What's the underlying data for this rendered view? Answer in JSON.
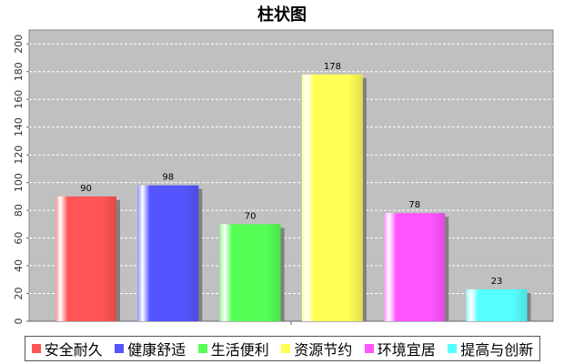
{
  "chart_data": {
    "type": "bar",
    "title": "柱状图",
    "categories": [
      "安全耐久",
      "健康舒适",
      "生活便利",
      "资源节约",
      "环境宜居",
      "提高与创新"
    ],
    "values": [
      90,
      98,
      70,
      178,
      78,
      23
    ],
    "colors": [
      "#ff5555",
      "#5555ff",
      "#55ff55",
      "#ffff55",
      "#ff55ff",
      "#55ffff"
    ],
    "ylim": [
      0,
      210
    ],
    "yticks": [
      0,
      20,
      40,
      60,
      80,
      100,
      120,
      140,
      160,
      180,
      200
    ],
    "grid": true,
    "legend_position": "bottom"
  }
}
